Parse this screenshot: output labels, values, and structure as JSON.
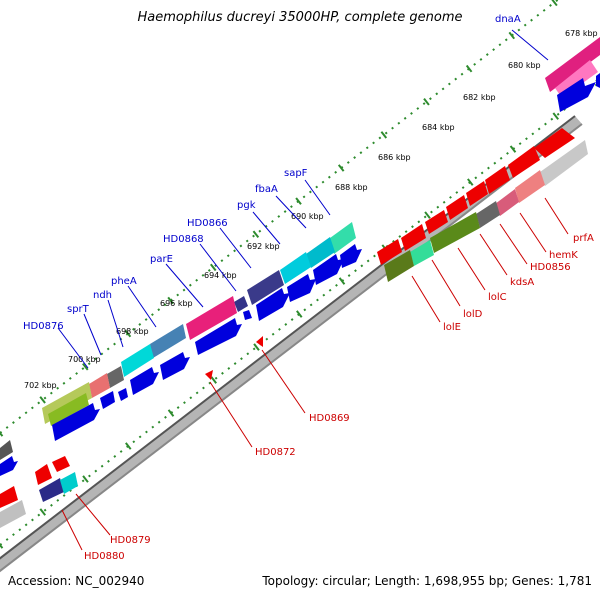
{
  "title": "Haemophilus ducreyi 35000HP, complete genome",
  "accession_label": "Accession:",
  "accession": "NC_002940",
  "topology_text": "Topology: circular; Length: 1,698,955 bp; Genes: 1,781",
  "kbp_labels": [
    "678 kbp",
    "680 kbp",
    "682 kbp",
    "684 kbp",
    "686 kbp",
    "688 kbp",
    "690 kbp",
    "692 kbp",
    "694 kbp",
    "696 kbp",
    "698 kbp",
    "700 kbp",
    "702 kbp"
  ],
  "forward_gene_labels": [
    "dnaA",
    "sapF",
    "fbaA",
    "pgk",
    "HD0866",
    "HD0868",
    "parE",
    "pheA",
    "ndh",
    "sprT",
    "HD0876"
  ],
  "reverse_gene_labels": [
    "prfA",
    "hemK",
    "HD0856",
    "kdsA",
    "lolC",
    "lolD",
    "lolE",
    "HD0869",
    "HD0872",
    "HD0879",
    "HD0880"
  ],
  "colors": {
    "forward_label": "#0000cc",
    "reverse_label": "#cc0000",
    "backbone": "#888888",
    "tick_green": "#2e8b2e",
    "gene_blue": "#0000dd",
    "gene_red": "#ee0000"
  }
}
